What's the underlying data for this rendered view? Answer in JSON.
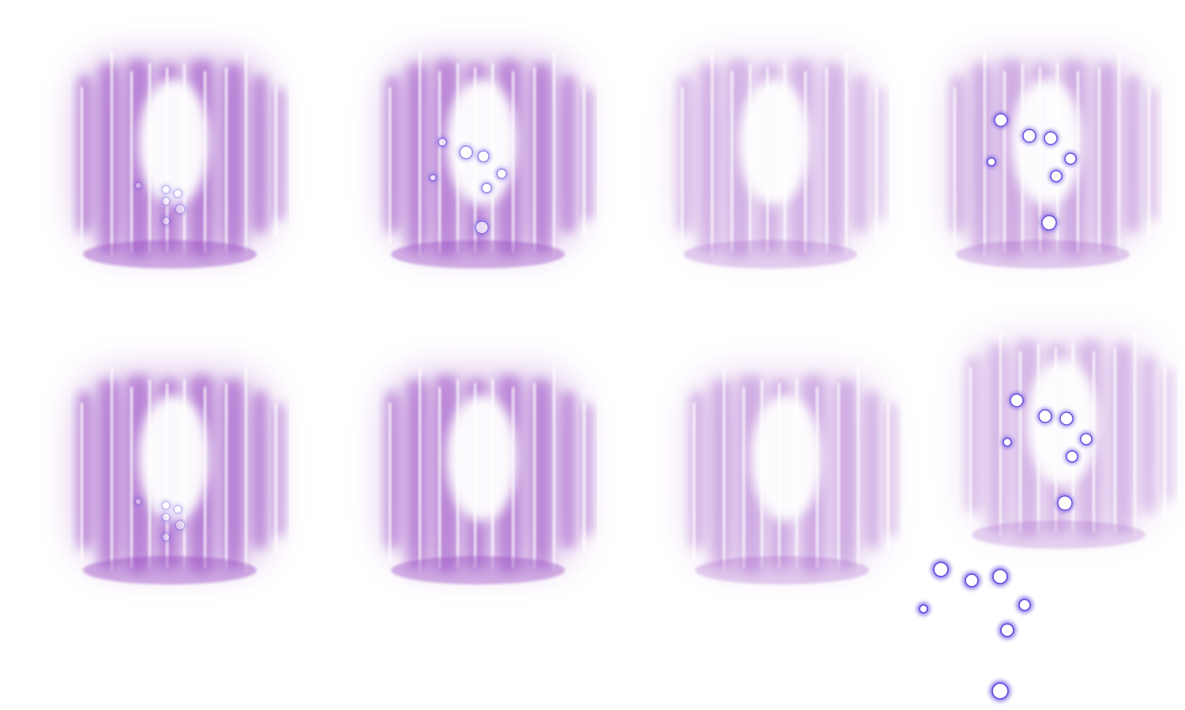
{
  "sprite_sheet": {
    "colors": {
      "background": "#ffffff",
      "glow": "#9b4fc4",
      "glow_light": "#c79be0",
      "streak": "#ffffff",
      "orb_ring": "#6a4fe0",
      "orb_core": "#ffffff"
    },
    "frames": [
      {
        "name": "frame-1",
        "intensity": 1.0,
        "orbs": "faint",
        "row": 1,
        "col": 1
      },
      {
        "name": "frame-2",
        "intensity": 0.95,
        "orbs": "soft",
        "row": 1,
        "col": 2
      },
      {
        "name": "frame-3",
        "intensity": 0.55,
        "orbs": "none",
        "row": 1,
        "col": 3
      },
      {
        "name": "frame-4",
        "intensity": 0.6,
        "orbs": "bright",
        "row": 1,
        "col": 4
      },
      {
        "name": "frame-5",
        "intensity": 1.0,
        "orbs": "faint",
        "row": 2,
        "col": 1
      },
      {
        "name": "frame-6",
        "intensity": 0.95,
        "orbs": "none",
        "row": 2,
        "col": 2
      },
      {
        "name": "frame-7",
        "intensity": 0.6,
        "orbs": "none",
        "row": 2,
        "col": 3
      },
      {
        "name": "frame-8",
        "intensity": 0.5,
        "orbs": "bright",
        "row": 2,
        "col": 4
      }
    ],
    "loose_orbs": {
      "name": "orb-particles",
      "count": 8
    }
  }
}
